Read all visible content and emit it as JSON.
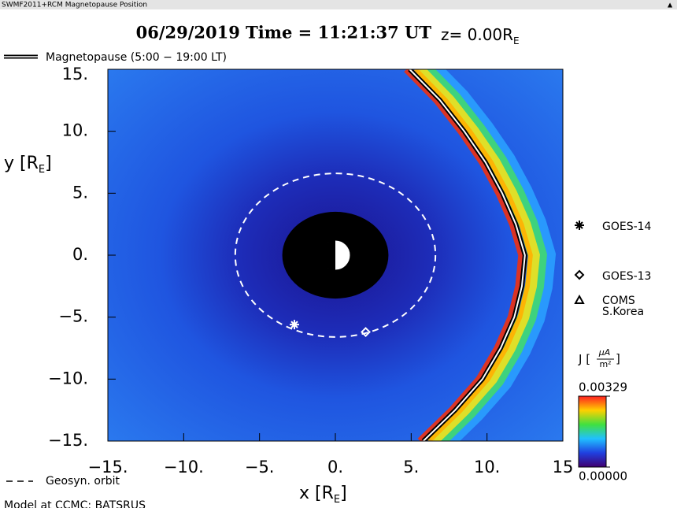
{
  "window_title": "SWMF2011+RCM Magnetopause Position",
  "chart_data": {
    "type": "field",
    "title": "06/29/2019 Time = 11:21:37 UT",
    "z_label": "z= 0.00R",
    "z_label_sub": "E",
    "xlabel": "x [R",
    "xlabel_sub": "E",
    "xlabel_end": "]",
    "ylabel": "y [R",
    "ylabel_sub": "E",
    "ylabel_end": "]",
    "xlim": [
      -15,
      15
    ],
    "ylim": [
      -15,
      15
    ],
    "xticks": [
      {
        "value": -15,
        "label": "−15."
      },
      {
        "value": -10,
        "label": "−10."
      },
      {
        "value": -5,
        "label": "−5."
      },
      {
        "value": 0,
        "label": "0."
      },
      {
        "value": 5,
        "label": "5."
      },
      {
        "value": 10,
        "label": "10."
      },
      15
    ],
    "yticks": [
      {
        "value": 15,
        "label": "15."
      },
      {
        "value": 10,
        "label": "10."
      },
      {
        "value": 5,
        "label": "5."
      },
      {
        "value": 0,
        "label": "0."
      },
      {
        "value": -5,
        "label": "−5."
      },
      {
        "value": -10,
        "label": "−10."
      },
      {
        "value": -15,
        "label": "−15."
      }
    ],
    "inner_boundary_radius": 3.5,
    "magnetopause": {
      "name": "Magnetopause (5:00 − 19:00 LT)",
      "x": [
        4.9,
        6.9,
        8.5,
        9.9,
        11.0,
        11.9,
        12.5,
        12.3,
        11.8,
        10.9,
        9.7,
        7.9,
        5.8
      ],
      "values": [
        15,
        12.5,
        10,
        7.5,
        5,
        2.5,
        0,
        -2.5,
        -5,
        -7.5,
        -10,
        -12.5,
        -15
      ]
    },
    "geosyn_orbit": {
      "name": "Geosyn. orbit",
      "radius": 6.6
    },
    "series": [
      {
        "name": "GOES-14",
        "marker": "asterisk",
        "color": "#ffffff",
        "x": [
          -2.7
        ],
        "values": [
          -5.6
        ]
      },
      {
        "name": "GOES-13",
        "marker": "diamond",
        "color": "#ffffff",
        "x": [
          2.0
        ],
        "values": [
          -6.2
        ]
      },
      {
        "name_lines": [
          "COMS",
          "S.Korea"
        ],
        "marker": "triangle",
        "color": "#ffffff",
        "x": [],
        "values": []
      }
    ],
    "colorbar": {
      "label": "J [",
      "unit_num": "μA",
      "unit_den": "m²",
      "label_end": "]",
      "lim": [
        0,
        0.00329
      ],
      "ticks": [
        0.00329,
        {
          "value": 0,
          "label": "0.00000"
        }
      ]
    },
    "footer": "Model at CCMC: BATSRUS"
  }
}
